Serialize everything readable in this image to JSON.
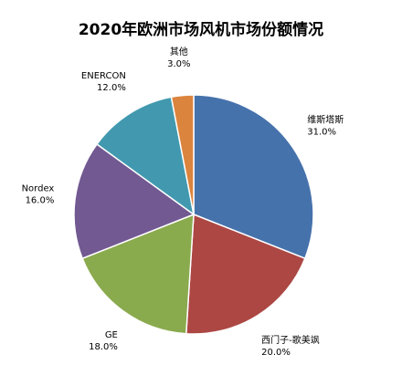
{
  "chart_data": {
    "type": "pie",
    "title": "2020年欧洲市场风机市场份额情况",
    "slices": [
      {
        "name": "维斯塔斯",
        "value": 31.0,
        "label": "31.0%",
        "color": "#4672AC"
      },
      {
        "name": "西门子-歌美飒",
        "value": 20.0,
        "label": "20.0%",
        "color": "#AC4744"
      },
      {
        "name": "GE",
        "value": 18.0,
        "label": "18.0%",
        "color": "#8AAA4E"
      },
      {
        "name": "Nordex",
        "value": 16.0,
        "label": "16.0%",
        "color": "#725992"
      },
      {
        "name": "ENERCON",
        "value": 12.0,
        "label": "12.0%",
        "color": "#4299AF"
      },
      {
        "name": "其他",
        "value": 3.0,
        "label": "3.0%",
        "color": "#DB843E"
      }
    ]
  }
}
